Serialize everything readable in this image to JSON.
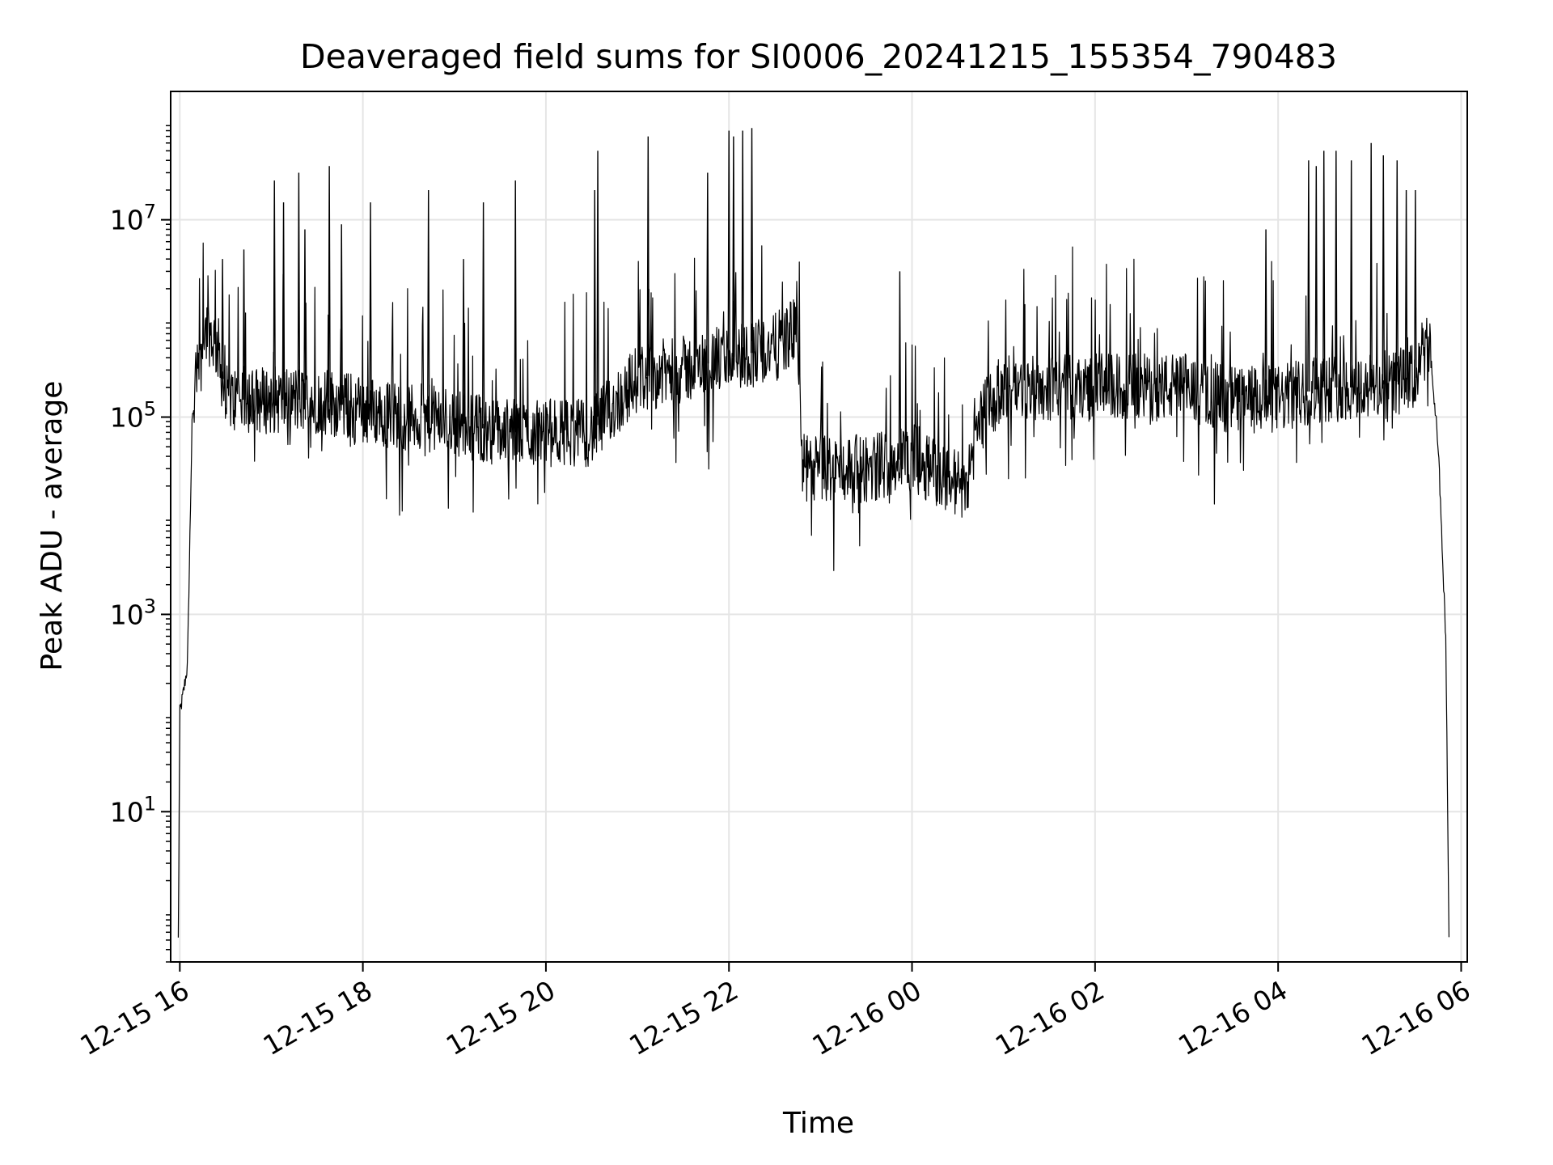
{
  "chart_data": {
    "type": "line",
    "title": "Deaveraged field sums for SI0006_20241215_155354_790483",
    "xlabel": "Time",
    "ylabel": "Peak ADU - average",
    "y_scale": "log",
    "grid": true,
    "legend": "none",
    "line_color": "#000000",
    "grid_color": "#e5e5e5",
    "xlim": [
      "12-15 15:54",
      "12-16 06:04"
    ],
    "ylim": [
      0.3,
      200000000
    ],
    "x_ticks": [
      "12-15 16",
      "12-15 18",
      "12-15 20",
      "12-15 22",
      "12-16 00",
      "12-16 02",
      "12-16 04",
      "12-16 06"
    ],
    "y_ticks": [
      {
        "value": 10,
        "base": "10",
        "exp": "1"
      },
      {
        "value": 1000,
        "base": "10",
        "exp": "3"
      },
      {
        "value": 100000,
        "base": "10",
        "exp": "5"
      },
      {
        "value": 10000000,
        "base": "10",
        "exp": "7"
      }
    ],
    "series": [
      {
        "x": [
          "12-15 15:59",
          "12-15 16:00",
          "12-15 16:02",
          "12-15 16:05",
          "12-15 16:08",
          "12-15 16:12",
          "12-15 16:18",
          "12-15 16:25",
          "12-15 16:30",
          "12-15 16:40",
          "12-15 17:00",
          "12-15 17:30",
          "12-15 18:00",
          "12-15 18:30",
          "12-15 19:00",
          "12-15 19:30",
          "12-15 20:00",
          "12-15 20:30",
          "12-15 21:00",
          "12-15 21:30",
          "12-15 22:00",
          "12-15 22:30",
          "12-15 22:45",
          "12-15 22:48",
          "12-15 23:00",
          "12-15 23:30",
          "12-16 00:00",
          "12-16 00:20",
          "12-16 00:35",
          "12-16 00:45",
          "12-16 01:00",
          "12-16 01:30",
          "12-16 02:00",
          "12-16 02:30",
          "12-16 03:00",
          "12-16 03:30",
          "12-16 04:00",
          "12-16 04:30",
          "12-16 05:00",
          "12-16 05:30",
          "12-16 05:35",
          "12-16 05:40",
          "12-16 05:45",
          "12-16 05:50",
          "12-16 05:52"
        ],
        "y": [
          0.5,
          100,
          150,
          300,
          80000,
          500000,
          800000,
          500000,
          150000,
          150000,
          150000,
          150000,
          120000,
          100000,
          90000,
          70000,
          70000,
          70000,
          250000,
          300000,
          400000,
          500000,
          800000,
          30000,
          30000,
          30000,
          40000,
          25000,
          20000,
          100000,
          200000,
          200000,
          200000,
          200000,
          200000,
          150000,
          150000,
          200000,
          200000,
          250000,
          500000,
          400000,
          50000,
          500,
          0.5
        ]
      },
      {
        "name": "",
        "x": [
          "12-15 16:28",
          "12-15 16:42",
          "12-15 17:02",
          "12-15 17:08",
          "12-15 17:18",
          "12-15 17:22",
          "12-15 17:38",
          "12-15 17:46",
          "12-15 18:05",
          "12-15 18:43",
          "12-15 19:06",
          "12-15 19:19",
          "12-15 19:40",
          "12-15 20:32",
          "12-15 20:34",
          "12-15 21:07",
          "12-15 21:46",
          "12-15 22:00",
          "12-15 22:03",
          "12-15 22:09",
          "12-15 22:15",
          "12-15 23:52",
          "12-16 03:52",
          "12-16 04:20",
          "12-16 04:25",
          "12-16 04:30",
          "12-16 04:38",
          "12-16 04:48",
          "12-16 05:01",
          "12-16 05:09",
          "12-16 05:18",
          "12-16 05:24",
          "12-16 05:30"
        ],
        "y": [
          4000000,
          5000000,
          25000000,
          15000000,
          30000000,
          8000000,
          35000000,
          9000000,
          15000000,
          20000000,
          4000000,
          15000000,
          25000000,
          20000000,
          50000000,
          70000000,
          30000000,
          80000000,
          70000000,
          80000000,
          85000000,
          3000000,
          8000000,
          40000000,
          35000000,
          50000000,
          50000000,
          40000000,
          60000000,
          45000000,
          40000000,
          20000000,
          20000000
        ]
      }
    ]
  }
}
